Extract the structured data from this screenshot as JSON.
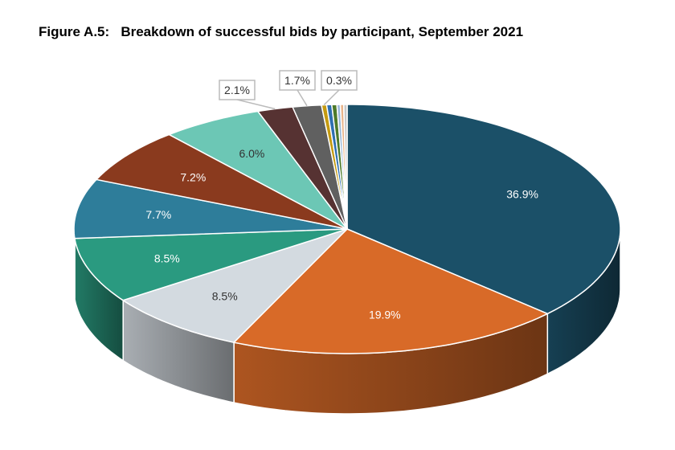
{
  "chart_data": {
    "type": "pie",
    "title": "Figure A.5:   Breakdown of successful bids by participant, September 2021",
    "style": "3d",
    "slices": [
      {
        "value": 36.9,
        "label": "36.9%",
        "color": "#1b5068",
        "text_color": "#ffffff"
      },
      {
        "value": 19.9,
        "label": "19.9%",
        "color": "#d86a28",
        "text_color": "#ffffff"
      },
      {
        "value": 8.5,
        "label": "8.5%",
        "color": "#d3dae0",
        "text_color": "#333333"
      },
      {
        "value": 8.5,
        "label": "8.5%",
        "color": "#2a9a80",
        "text_color": "#ffffff"
      },
      {
        "value": 7.7,
        "label": "7.7%",
        "color": "#2e7d9a",
        "text_color": "#ffffff"
      },
      {
        "value": 7.2,
        "label": "7.2%",
        "color": "#8a3a1e",
        "text_color": "#ffffff"
      },
      {
        "value": 6.0,
        "label": "6.0%",
        "color": "#6cc7b5",
        "text_color": "#333333"
      },
      {
        "value": 2.1,
        "label": "2.1%",
        "color": "#563232",
        "text_color": "#333333",
        "callout": true
      },
      {
        "value": 1.7,
        "label": "1.7%",
        "color": "#606060",
        "text_color": "#333333",
        "callout": true
      },
      {
        "value": 0.3,
        "label": "0.3%",
        "color": "#c49a10",
        "text_color": "#333333",
        "callout": true
      },
      {
        "value": 0.3,
        "label": "",
        "color": "#2e6fb0"
      },
      {
        "value": 0.3,
        "label": "",
        "color": "#4d7a2a"
      },
      {
        "value": 0.2,
        "label": "",
        "color": "#9ab8d8"
      },
      {
        "value": 0.2,
        "label": "",
        "color": "#e8b48a"
      },
      {
        "value": 0.2,
        "label": "",
        "color": "#c8c8c8"
      }
    ]
  }
}
